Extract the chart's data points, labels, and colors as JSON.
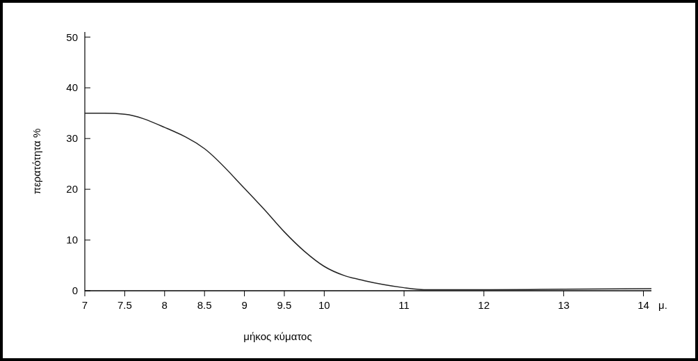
{
  "chart_data": {
    "type": "line",
    "xlabel": "μήκος κύματος",
    "ylabel": "περατότητα %",
    "x": [
      7,
      7.25,
      7.5,
      8,
      8.5,
      9,
      9.25,
      9.5,
      9.75,
      10,
      10.25,
      10.5,
      10.75,
      11,
      11.3,
      12,
      13,
      14.1
    ],
    "series": [
      {
        "color": "#222222",
        "values": [
          35,
          35,
          34.8,
          32.2,
          28,
          20.2,
          16,
          11.6,
          7.8,
          4.8,
          3,
          2,
          1.2,
          0.6,
          0.2,
          0.2,
          0.3,
          0.4
        ]
      }
    ],
    "xlim": [
      7,
      14.1
    ],
    "ylim": [
      0,
      51
    ],
    "xticks": [
      7,
      7.5,
      8,
      8.5,
      9,
      9.5,
      10,
      11,
      12,
      13,
      14
    ],
    "yticks": [
      0,
      10,
      20,
      30,
      40,
      50
    ],
    "annotations": [
      "μ."
    ],
    "grid": false,
    "marker": "none",
    "line_style": "solid"
  }
}
